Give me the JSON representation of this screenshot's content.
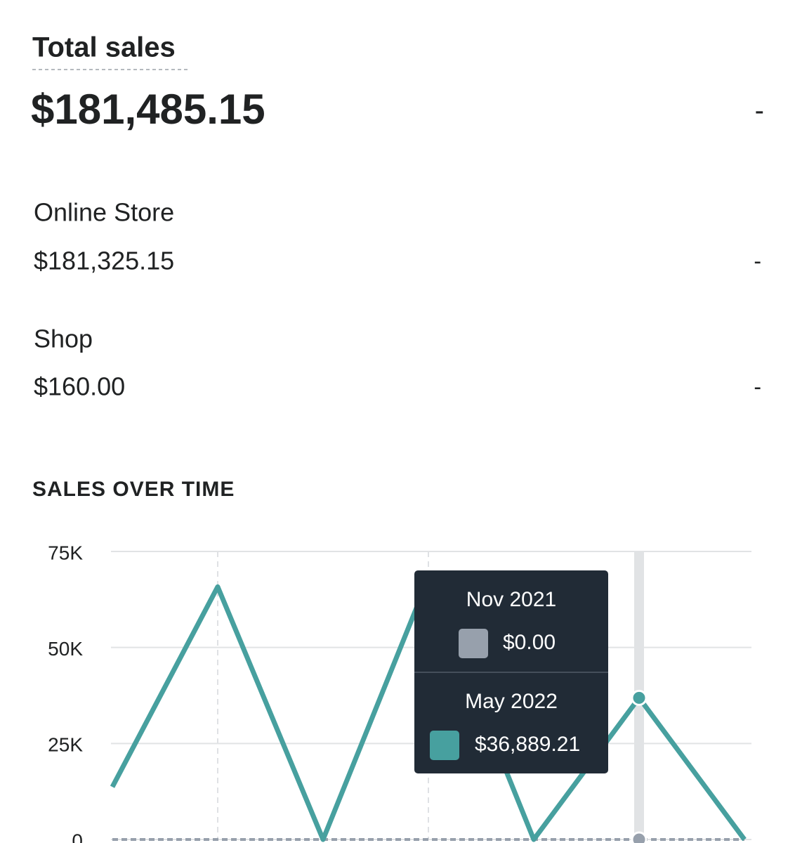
{
  "summary": {
    "title": "Total sales",
    "value": "$181,485.15",
    "change": "-"
  },
  "breakdown": [
    {
      "label": "Online Store",
      "value": "$181,325.15",
      "change": "-"
    },
    {
      "label": "Shop",
      "value": "$160.00",
      "change": "-"
    }
  ],
  "chart_data": {
    "type": "line",
    "title": "SALES OVER TIME",
    "categories": [
      null,
      null,
      null,
      null,
      null,
      null,
      null
    ],
    "series": [
      {
        "color": "#97a0ac",
        "dashed": true,
        "values": [
          0,
          0,
          0,
          0,
          0,
          0,
          0
        ]
      },
      {
        "color": "#47a09f",
        "dashed": false,
        "values": [
          13700,
          65800,
          0,
          68000,
          0,
          36889.21,
          0
        ]
      }
    ],
    "ylim": [
      0,
      75000
    ],
    "yticks": [
      0,
      {
        "value": 25000,
        "label": "25K"
      },
      {
        "value": 50000,
        "label": "50K"
      },
      {
        "value": 75000,
        "label": "75K"
      }
    ],
    "grid": true,
    "tooltip": {
      "items": [
        {
          "label": "Nov 2021",
          "value_label": "$0.00"
        },
        {
          "label": "May 2022",
          "value_label": "$36,889.21"
        }
      ]
    }
  }
}
